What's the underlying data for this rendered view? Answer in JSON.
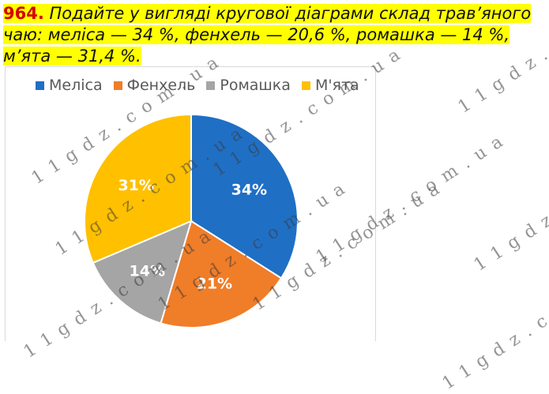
{
  "task": {
    "number": "964.",
    "text": "Подайте у вигляді кругової діаграми склад трав’яного чаю: меліса — 34 %, фенхель — 20,6 %, ромашка — 14 %, м’ята — 31,4 %."
  },
  "watermark": "1 1 g d z . c o m . u a",
  "chart_data": {
    "type": "pie",
    "title": "",
    "legend_position": "top",
    "categories": [
      "Меліса",
      "Фенхель",
      "Ромашка",
      "М'ята"
    ],
    "values": [
      34,
      20.6,
      14,
      31.4
    ],
    "data_labels": [
      "34%",
      "21%",
      "14%",
      "31%"
    ],
    "colors": [
      "#1f6fc5",
      "#f07d28",
      "#a5a5a5",
      "#ffc000"
    ]
  }
}
